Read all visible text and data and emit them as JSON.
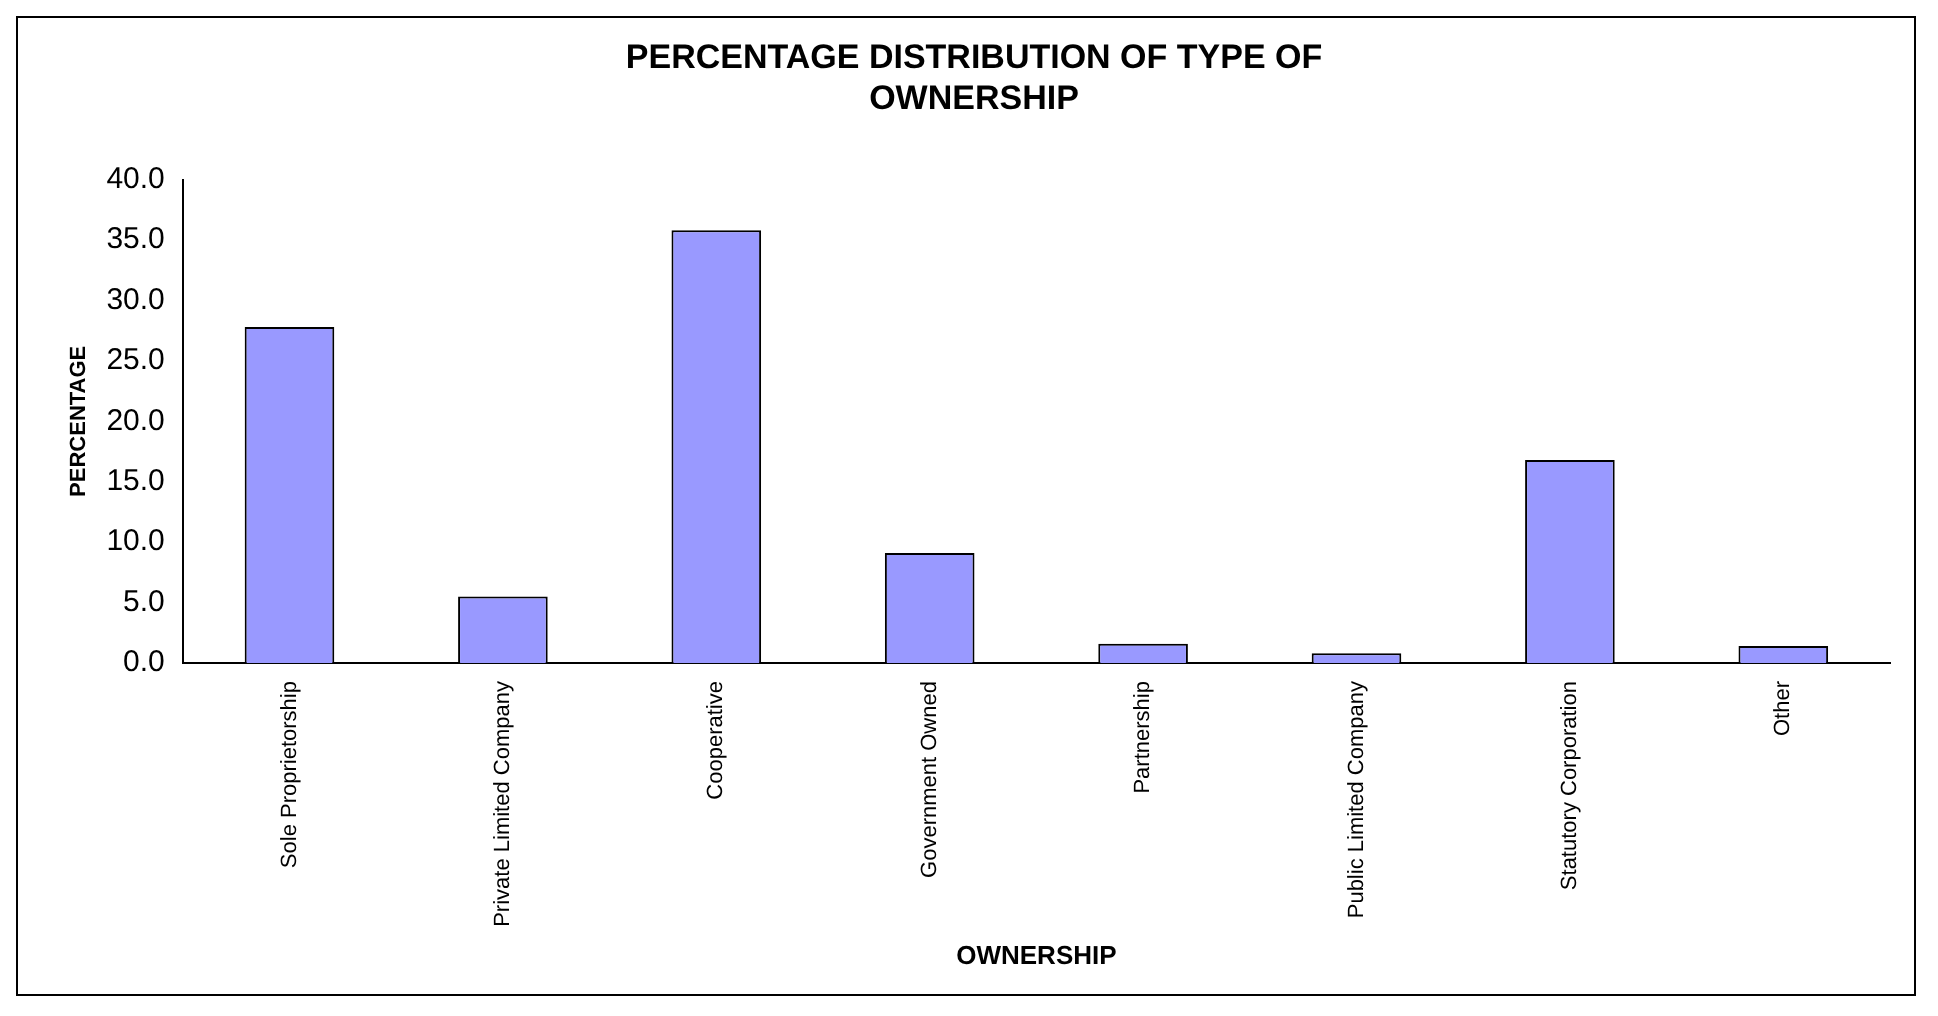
{
  "chart_data": {
    "type": "bar",
    "title": "PERCENTAGE DISTRIBUTION OF TYPE OF OWNERSHIP",
    "xlabel": "OWNERSHIP",
    "ylabel": "PERCENTAGE",
    "categories": [
      "Sole Proprietorship",
      "Private Limited Company",
      "Cooperative",
      "Government Owned",
      "Partnership",
      "Public Limited Company",
      "Statutory Corporation",
      "Other"
    ],
    "values": [
      27.8,
      5.5,
      35.8,
      9.1,
      1.6,
      0.8,
      16.8,
      1.4
    ],
    "color": "#9999ff",
    "ylim": [
      0,
      40
    ],
    "yticks": [
      {
        "value": 0,
        "label": "0.0"
      },
      {
        "value": 5,
        "label": "5.0"
      },
      {
        "value": 10,
        "label": "10.0"
      },
      {
        "value": 15,
        "label": "15.0"
      },
      {
        "value": 20,
        "label": "20.0"
      },
      {
        "value": 25,
        "label": "25.0"
      },
      {
        "value": 30,
        "label": "30.0"
      },
      {
        "value": 35,
        "label": "35.0"
      },
      {
        "value": 40,
        "label": "40.0"
      }
    ],
    "grid": false,
    "legend": false
  }
}
